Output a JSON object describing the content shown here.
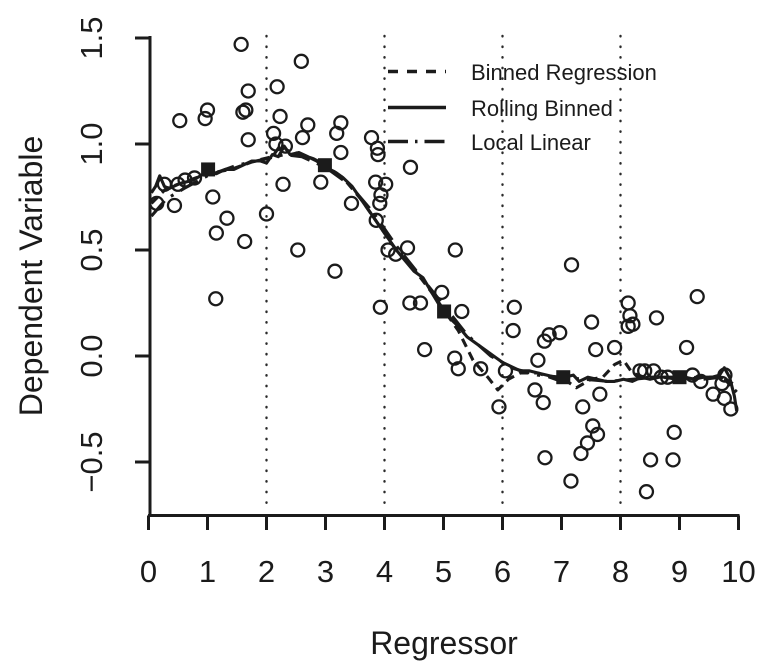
{
  "chart_data": {
    "type": "scatter",
    "title": "",
    "xlabel": "Regressor",
    "ylabel": "Dependent Variable",
    "xlim": [
      0,
      10
    ],
    "ylim": [
      -0.75,
      1.54
    ],
    "grid": "vertical dotted lines",
    "legend_position": "top-right-inside",
    "x_ticks": [
      "0",
      "1",
      "2",
      "3",
      "4",
      "5",
      "6",
      "7",
      "8",
      "9",
      "10"
    ],
    "x_tick_values": [
      0,
      1,
      2,
      3,
      4,
      5,
      6,
      7,
      8,
      9,
      10
    ],
    "y_ticks": [
      "−0.5",
      "0.0",
      "0.5",
      "1.0",
      "1.5"
    ],
    "y_tick_values": [
      -0.5,
      0.0,
      0.5,
      1.0,
      1.5
    ],
    "gridlines_x": [
      2,
      4,
      6,
      8
    ],
    "points": [
      [
        0.14,
        0.72
      ],
      [
        0.27,
        0.81
      ],
      [
        0.44,
        0.71
      ],
      [
        0.5,
        0.81
      ],
      [
        0.53,
        1.11
      ],
      [
        0.62,
        0.83
      ],
      [
        0.78,
        0.84
      ],
      [
        0.96,
        1.12
      ],
      [
        1.0,
        1.16
      ],
      [
        1.09,
        0.75
      ],
      [
        1.14,
        0.27
      ],
      [
        1.15,
        0.58
      ],
      [
        1.33,
        0.65
      ],
      [
        1.57,
        1.47
      ],
      [
        1.6,
        1.15
      ],
      [
        1.65,
        1.16
      ],
      [
        1.63,
        0.54
      ],
      [
        1.69,
        1.25
      ],
      [
        1.69,
        1.02
      ],
      [
        2.0,
        0.67
      ],
      [
        2.12,
        1.05
      ],
      [
        2.16,
        1.0
      ],
      [
        2.18,
        1.27
      ],
      [
        2.23,
        1.13
      ],
      [
        2.28,
        0.81
      ],
      [
        2.32,
        0.99
      ],
      [
        2.53,
        0.5
      ],
      [
        2.59,
        1.39
      ],
      [
        2.61,
        1.03
      ],
      [
        2.7,
        1.09
      ],
      [
        2.92,
        0.82
      ],
      [
        3.16,
        0.4
      ],
      [
        3.19,
        1.05
      ],
      [
        3.26,
        1.1
      ],
      [
        3.26,
        0.96
      ],
      [
        3.44,
        0.72
      ],
      [
        3.78,
        1.03
      ],
      [
        3.85,
        0.82
      ],
      [
        3.86,
        0.64
      ],
      [
        3.88,
        0.98
      ],
      [
        3.89,
        0.95
      ],
      [
        3.92,
        0.72
      ],
      [
        3.93,
        0.23
      ],
      [
        3.94,
        0.76
      ],
      [
        4.02,
        0.81
      ],
      [
        4.06,
        0.5
      ],
      [
        4.19,
        0.48
      ],
      [
        4.39,
        0.51
      ],
      [
        4.43,
        0.25
      ],
      [
        4.44,
        0.89
      ],
      [
        4.61,
        0.25
      ],
      [
        4.68,
        0.03
      ],
      [
        4.97,
        0.3
      ],
      [
        5.19,
        -0.01
      ],
      [
        5.2,
        0.5
      ],
      [
        5.25,
        -0.06
      ],
      [
        5.31,
        0.21
      ],
      [
        5.63,
        -0.06
      ],
      [
        5.94,
        -0.24
      ],
      [
        6.05,
        -0.07
      ],
      [
        6.18,
        0.12
      ],
      [
        6.2,
        0.23
      ],
      [
        6.55,
        -0.16
      ],
      [
        6.6,
        -0.02
      ],
      [
        6.69,
        -0.22
      ],
      [
        6.71,
        0.07
      ],
      [
        6.72,
        -0.48
      ],
      [
        6.79,
        0.1
      ],
      [
        6.97,
        0.11
      ],
      [
        7.16,
        -0.59
      ],
      [
        7.17,
        0.43
      ],
      [
        7.33,
        -0.46
      ],
      [
        7.36,
        -0.24
      ],
      [
        7.44,
        -0.41
      ],
      [
        7.51,
        0.16
      ],
      [
        7.53,
        -0.33
      ],
      [
        7.58,
        0.03
      ],
      [
        7.61,
        -0.37
      ],
      [
        7.65,
        -0.18
      ],
      [
        7.9,
        0.04
      ],
      [
        8.13,
        0.25
      ],
      [
        8.13,
        0.14
      ],
      [
        8.16,
        0.19
      ],
      [
        8.21,
        0.15
      ],
      [
        8.33,
        -0.07
      ],
      [
        8.41,
        -0.07
      ],
      [
        8.44,
        -0.64
      ],
      [
        8.51,
        -0.49
      ],
      [
        8.56,
        -0.07
      ],
      [
        8.61,
        0.18
      ],
      [
        8.69,
        -0.1
      ],
      [
        8.8,
        -0.1
      ],
      [
        8.89,
        -0.49
      ],
      [
        8.91,
        -0.36
      ],
      [
        9.12,
        0.04
      ],
      [
        9.22,
        -0.09
      ],
      [
        9.3,
        0.28
      ],
      [
        9.36,
        -0.12
      ],
      [
        9.57,
        -0.18
      ],
      [
        9.72,
        -0.13
      ],
      [
        9.76,
        -0.2
      ],
      [
        9.77,
        -0.09
      ],
      [
        9.87,
        -0.25
      ]
    ],
    "bin_means": [
      [
        1.01,
        0.88
      ],
      [
        2.99,
        0.9
      ],
      [
        5.01,
        0.21
      ],
      [
        7.03,
        -0.1
      ],
      [
        9.0,
        -0.1
      ]
    ],
    "series": [
      {
        "name": "Binned Regression",
        "style": "dashed",
        "points": [
          [
            0.05,
            0.72
          ],
          [
            0.3,
            0.79
          ],
          [
            0.6,
            0.82
          ],
          [
            1.0,
            0.86
          ],
          [
            1.4,
            0.88
          ],
          [
            1.8,
            0.92
          ],
          [
            2.1,
            0.94
          ],
          [
            2.25,
            1.0
          ],
          [
            2.35,
            0.97
          ],
          [
            2.6,
            0.95
          ],
          [
            2.8,
            0.93
          ],
          [
            3.0,
            0.9
          ],
          [
            3.3,
            0.84
          ],
          [
            3.6,
            0.74
          ],
          [
            3.9,
            0.62
          ],
          [
            4.2,
            0.5
          ],
          [
            4.5,
            0.41
          ],
          [
            4.8,
            0.3
          ],
          [
            5.05,
            0.2
          ],
          [
            5.25,
            0.12
          ],
          [
            5.5,
            -0.02
          ],
          [
            5.75,
            -0.1
          ],
          [
            5.92,
            -0.16
          ],
          [
            6.1,
            -0.11
          ],
          [
            6.3,
            -0.08
          ],
          [
            6.6,
            -0.08
          ],
          [
            6.9,
            -0.11
          ],
          [
            7.1,
            -0.12
          ],
          [
            7.25,
            -0.15
          ],
          [
            7.5,
            -0.11
          ],
          [
            7.7,
            -0.1
          ],
          [
            7.9,
            -0.04
          ],
          [
            8.05,
            -0.02
          ],
          [
            8.2,
            -0.08
          ],
          [
            8.4,
            -0.1
          ],
          [
            8.7,
            -0.1
          ],
          [
            9.0,
            -0.11
          ],
          [
            9.3,
            -0.1
          ],
          [
            9.6,
            -0.1
          ],
          [
            9.8,
            -0.12
          ],
          [
            9.97,
            -0.17
          ]
        ]
      },
      {
        "name": "Rolling Binned",
        "style": "solid",
        "points": [
          [
            0.05,
            0.77
          ],
          [
            0.12,
            0.8
          ],
          [
            0.19,
            0.85
          ],
          [
            0.27,
            0.8
          ],
          [
            0.35,
            0.79
          ],
          [
            0.5,
            0.81
          ],
          [
            0.62,
            0.82
          ],
          [
            0.76,
            0.83
          ],
          [
            0.88,
            0.85
          ],
          [
            1.01,
            0.87
          ],
          [
            1.15,
            0.86
          ],
          [
            1.3,
            0.88
          ],
          [
            1.45,
            0.88
          ],
          [
            1.6,
            0.9
          ],
          [
            1.75,
            0.92
          ],
          [
            1.9,
            0.92
          ],
          [
            2.0,
            0.91
          ],
          [
            2.1,
            0.95
          ],
          [
            2.2,
            0.94
          ],
          [
            2.3,
            0.99
          ],
          [
            2.4,
            0.95
          ],
          [
            2.55,
            0.96
          ],
          [
            2.7,
            0.94
          ],
          [
            2.85,
            0.92
          ],
          [
            3.0,
            0.89
          ],
          [
            3.15,
            0.87
          ],
          [
            3.3,
            0.84
          ],
          [
            3.45,
            0.8
          ],
          [
            3.6,
            0.74
          ],
          [
            3.75,
            0.68
          ],
          [
            3.9,
            0.62
          ],
          [
            4.05,
            0.56
          ],
          [
            4.2,
            0.5
          ],
          [
            4.35,
            0.45
          ],
          [
            4.5,
            0.4
          ],
          [
            4.65,
            0.37
          ],
          [
            4.8,
            0.3
          ],
          [
            4.95,
            0.23
          ],
          [
            5.1,
            0.18
          ],
          [
            5.25,
            0.14
          ],
          [
            5.4,
            0.09
          ],
          [
            5.55,
            0.06
          ],
          [
            5.7,
            0.03
          ],
          [
            5.85,
            0.0
          ],
          [
            6.0,
            -0.03
          ],
          [
            6.15,
            -0.05
          ],
          [
            6.3,
            -0.07
          ],
          [
            6.45,
            -0.07
          ],
          [
            6.6,
            -0.08
          ],
          [
            6.75,
            -0.09
          ],
          [
            6.9,
            -0.1
          ],
          [
            7.05,
            -0.1
          ],
          [
            7.2,
            -0.09
          ],
          [
            7.3,
            -0.12
          ],
          [
            7.45,
            -0.1
          ],
          [
            7.6,
            -0.11
          ],
          [
            7.75,
            -0.12
          ],
          [
            7.9,
            -0.12
          ],
          [
            8.05,
            -0.11
          ],
          [
            8.2,
            -0.12
          ],
          [
            8.35,
            -0.1
          ],
          [
            8.5,
            -0.11
          ],
          [
            8.65,
            -0.1
          ],
          [
            8.8,
            -0.1
          ],
          [
            8.95,
            -0.11
          ],
          [
            9.1,
            -0.1
          ],
          [
            9.25,
            -0.11
          ],
          [
            9.4,
            -0.1
          ],
          [
            9.55,
            -0.1
          ],
          [
            9.68,
            -0.09
          ],
          [
            9.76,
            -0.055
          ],
          [
            9.85,
            -0.1
          ],
          [
            9.93,
            -0.19
          ],
          [
            9.97,
            -0.26
          ]
        ]
      },
      {
        "name": "Local Linear",
        "style": "dashdot",
        "points": [
          [
            0.05,
            0.66
          ],
          [
            0.3,
            0.74
          ],
          [
            0.6,
            0.79
          ],
          [
            1.0,
            0.85
          ],
          [
            1.5,
            0.9
          ],
          [
            2.0,
            0.93
          ],
          [
            2.3,
            0.95
          ],
          [
            2.6,
            0.94
          ],
          [
            3.0,
            0.89
          ],
          [
            3.4,
            0.81
          ],
          [
            3.8,
            0.68
          ],
          [
            4.2,
            0.52
          ],
          [
            4.6,
            0.38
          ],
          [
            5.0,
            0.24
          ],
          [
            5.4,
            0.1
          ],
          [
            5.8,
            0.0
          ],
          [
            6.2,
            -0.06
          ],
          [
            6.6,
            -0.09
          ],
          [
            7.0,
            -0.1
          ],
          [
            7.4,
            -0.11
          ],
          [
            7.8,
            -0.12
          ],
          [
            8.2,
            -0.11
          ],
          [
            8.6,
            -0.1
          ],
          [
            9.0,
            -0.1
          ],
          [
            9.4,
            -0.11
          ],
          [
            9.7,
            -0.1
          ],
          [
            9.97,
            -0.14
          ]
        ]
      }
    ],
    "legend_entries": [
      "Binned Regression",
      "Rolling Binned",
      "Local Linear"
    ],
    "colors": {
      "foreground": "#1b1b1b",
      "background": "#ffffff"
    }
  }
}
